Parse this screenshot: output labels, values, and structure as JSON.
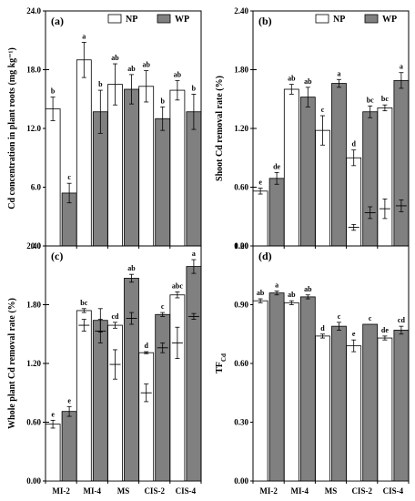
{
  "legend": {
    "np": "NP",
    "wp": "WP"
  },
  "colors": {
    "np": "#ffffff",
    "wp": "#808080",
    "axis": "#000000"
  },
  "chart_data": [
    {
      "panel": "(a)",
      "type": "bar",
      "ylabel": "Cd concentration in plant roots (mg kg⁻¹)",
      "ylim": [
        0,
        24
      ],
      "yticks": [
        "0.0",
        "6.0",
        "12.0",
        "18.0",
        "24.0"
      ],
      "categories": [
        "MI-2",
        "MI-4",
        "MS",
        "CIS-2",
        "CIS-4"
      ],
      "series": [
        {
          "name": "NP",
          "values": [
            14.0,
            19.0,
            16.5,
            16.3,
            15.9
          ],
          "errors": [
            1.2,
            1.8,
            2.1,
            1.6,
            1.0
          ],
          "labels": [
            "b",
            "a",
            "ab",
            "ab",
            "ab"
          ]
        },
        {
          "name": "WP",
          "values": [
            5.4,
            13.7,
            16.0,
            13.0,
            13.7
          ],
          "errors": [
            1.0,
            2.2,
            1.5,
            1.2,
            1.8
          ],
          "labels": [
            "c",
            "b",
            "ab",
            "b",
            "b"
          ]
        }
      ],
      "legend": "top-right",
      "show_xticks": false
    },
    {
      "panel": "(b)",
      "type": "bar",
      "ylabel": "Shoot Cd removal rate (%)",
      "ylim": [
        0,
        2.4
      ],
      "yticks": [
        "0.00",
        "0.60",
        "1.20",
        "1.80",
        "2.40"
      ],
      "categories": [
        "MI-2",
        "MI-4",
        "MS",
        "CIS-2",
        "CIS-4"
      ],
      "series": [
        {
          "name": "NP",
          "values": [
            0.56,
            1.6,
            1.18,
            0.9,
            1.41
          ],
          "errors": [
            0.03,
            0.05,
            0.15,
            0.08,
            0.03
          ],
          "labels": [
            "e",
            "ab",
            "c",
            "d",
            "bc"
          ]
        },
        {
          "name": "WP",
          "values": [
            0.69,
            1.52,
            1.66,
            1.37,
            1.69
          ],
          "errors": [
            0.06,
            0.1,
            0.04,
            0.06,
            0.08
          ],
          "labels": [
            "de",
            "ab",
            "a",
            "bc",
            "a"
          ]
        }
      ],
      "inner_markers": [
        {
          "category": "CIS-2",
          "series": "NP",
          "value": 0.19,
          "error": 0.03
        },
        {
          "category": "CIS-2",
          "series": "WP",
          "value": 0.34,
          "error": 0.06
        },
        {
          "category": "CIS-4",
          "series": "NP",
          "value": 0.38,
          "error": 0.1
        },
        {
          "category": "CIS-4",
          "series": "WP",
          "value": 0.41,
          "error": 0.06
        }
      ],
      "legend": "top-right",
      "show_xticks": false
    },
    {
      "panel": "(c)",
      "type": "bar",
      "ylabel": "Whole plant Cd removal rate (%)",
      "ylim": [
        0,
        2.4
      ],
      "yticks": [
        "0.00",
        "0.60",
        "1.20",
        "1.80",
        "2.40"
      ],
      "categories": [
        "MI-2",
        "MI-4",
        "MS",
        "CIS-2",
        "CIS-4"
      ],
      "series": [
        {
          "name": "NP",
          "values": [
            0.58,
            1.74,
            1.59,
            1.31,
            1.9
          ],
          "errors": [
            0.04,
            0.02,
            0.03,
            0.01,
            0.03
          ],
          "labels": [
            "e",
            "bc",
            "cd",
            "d",
            "abc"
          ]
        },
        {
          "name": "WP",
          "values": [
            0.71,
            1.64,
            2.07,
            1.7,
            2.19
          ],
          "errors": [
            0.05,
            0.12,
            0.04,
            0.02,
            0.07
          ],
          "labels": [
            "e",
            "",
            "ab",
            "c",
            "a"
          ]
        }
      ],
      "inner_markers": [
        {
          "category": "MI-4",
          "series": "NP",
          "value": 1.59,
          "error": 0.06
        },
        {
          "category": "MI-4",
          "series": "WP",
          "value": 1.53,
          "error": 0.12
        },
        {
          "category": "MS",
          "series": "NP",
          "value": 1.19,
          "error": 0.15
        },
        {
          "category": "MS",
          "series": "WP",
          "value": 1.66,
          "error": 0.06
        },
        {
          "category": "CIS-2",
          "series": "NP",
          "value": 0.9,
          "error": 0.09
        },
        {
          "category": "CIS-2",
          "series": "WP",
          "value": 1.36,
          "error": 0.05
        },
        {
          "category": "CIS-4",
          "series": "NP",
          "value": 1.41,
          "error": 0.16
        },
        {
          "category": "CIS-4",
          "series": "WP",
          "value": 1.68,
          "error": 0.03
        }
      ],
      "show_xticks": true
    },
    {
      "panel": "(d)",
      "type": "bar",
      "ylabel": "TF_Cd",
      "ylim": [
        0,
        1.2
      ],
      "yticks": [
        "0.00",
        "0.30",
        "0.60",
        "0.90",
        "1.20"
      ],
      "categories": [
        "MI-2",
        "MI-4",
        "MS",
        "CIS-2",
        "CIS-4"
      ],
      "series": [
        {
          "name": "NP",
          "values": [
            0.92,
            0.91,
            0.74,
            0.69,
            0.73
          ],
          "errors": [
            0.01,
            0.01,
            0.01,
            0.03,
            0.01
          ],
          "labels": [
            "ab",
            "ab",
            "d",
            "e",
            "de"
          ]
        },
        {
          "name": "WP",
          "values": [
            0.96,
            0.94,
            0.79,
            0.8,
            0.77
          ],
          "errors": [
            0.01,
            0.01,
            0.02,
            0.0,
            0.02
          ],
          "labels": [
            "a",
            "ab",
            "c",
            "c",
            "cd"
          ]
        }
      ],
      "show_xticks": true
    }
  ]
}
